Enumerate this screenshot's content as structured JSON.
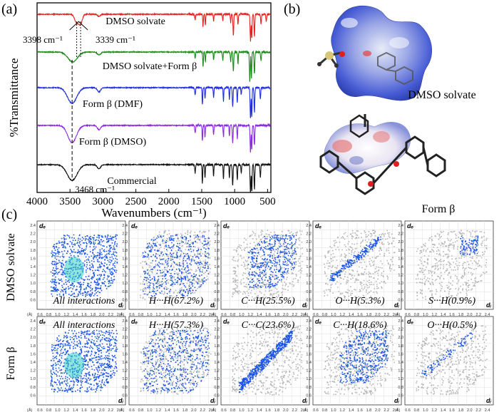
{
  "panel_labels": {
    "a": "(a)",
    "b": "(b)",
    "c": "(c)"
  },
  "chart_data": [
    {
      "type": "line",
      "panel": "(a)",
      "xlabel": "Wavenumbers (cm⁻¹)",
      "ylabel": "%Transmittance",
      "xlim": [
        4000,
        450
      ],
      "x_reversed": true,
      "x_ticks": [
        4000,
        3500,
        3000,
        2500,
        2000,
        1500,
        1000,
        500
      ],
      "x_tick_labels": [
        "4000",
        "3500",
        "3000",
        "2500",
        "2000",
        "1500",
        "1000",
        "500"
      ],
      "series": [
        {
          "name": "DMSO solvate",
          "color": "#e8201e"
        },
        {
          "name": "DMSO solvate+Form β",
          "color": "#1b8a1b"
        },
        {
          "name": "Form β (DMF)",
          "color": "#1f2ee0"
        },
        {
          "name": "Form β (DMSO)",
          "color": "#8a2be2"
        },
        {
          "name": "Commercial",
          "color": "#111111"
        }
      ],
      "annotations": [
        {
          "text": "3398 cm⁻¹",
          "x": 3398
        },
        {
          "text": "3339 cm⁻¹",
          "x": 3339
        },
        {
          "text": "3468 cm⁻¹",
          "x": 3468
        }
      ],
      "grid": false
    },
    {
      "type": "scatter",
      "panel": "(c)",
      "description": "Hirshfeld 2D fingerprint plots",
      "axis_x": "dᵢ",
      "axis_y": "dₑ",
      "x_ticks": [
        "0.6",
        "0.8",
        "1.0",
        "1.2",
        "1.4",
        "1.6",
        "1.8",
        "2.0",
        "2.2",
        "2.4"
      ],
      "y_ticks": [
        "0.6",
        "0.8",
        "1.0",
        "1.2",
        "1.4",
        "1.6",
        "1.8",
        "2.0",
        "2.2",
        "2.4"
      ],
      "axis_unit": "(Å)",
      "rows": [
        {
          "name": "DMSO solvate",
          "plots": [
            "All interactions",
            "H···H(67.2%)",
            "C···H(25.5%)",
            "O···H(5.3%)",
            "S···H(0.9%)"
          ]
        },
        {
          "name": "Form β",
          "plots": [
            "All interactions",
            "H···H(57.3%)",
            "C···C(23.6%)",
            "C···H(18.6%)",
            "O···H(0.5%)"
          ]
        }
      ]
    }
  ],
  "panel_b": {
    "label_top": "DMSO solvate",
    "label_bottom": "Form β"
  },
  "colors": {
    "surface_blue": "#4a5fd6",
    "fingerprint_blue": "#1a55e6",
    "fingerprint_gray": "#b5b5b5"
  }
}
